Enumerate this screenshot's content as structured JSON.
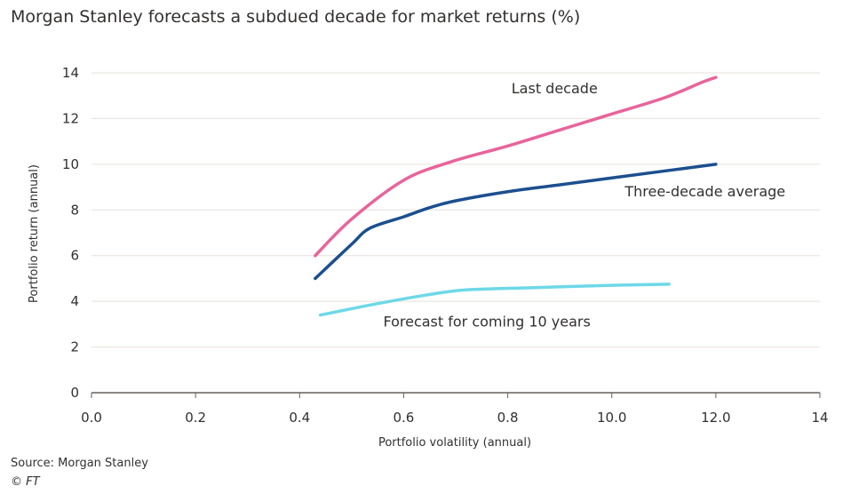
{
  "title": "Morgan Stanley forecasts a subdued decade for market returns (%)",
  "source": "Source: Morgan Stanley",
  "copyright": "© FT",
  "chart_data": {
    "type": "line",
    "title": "Morgan Stanley forecasts a subdued decade for market returns (%)",
    "xlabel": "Portfolio volatility (annual)",
    "ylabel": "Portfolio return (annual)",
    "x_ticks": [
      "0.0",
      "0.2",
      "0.4",
      "0.6",
      "0.8",
      "10.0",
      "12.0",
      "14"
    ],
    "y_ticks": [
      "0",
      "2",
      "4",
      "6",
      "8",
      "10",
      "12",
      "14"
    ],
    "xlim": [
      0,
      14
    ],
    "ylim": [
      0,
      14
    ],
    "grid": "horizontal",
    "series": [
      {
        "name": "Last decade",
        "color": "#e8649b",
        "points": [
          [
            4.3,
            6.0
          ],
          [
            5.0,
            7.6
          ],
          [
            6.0,
            9.3
          ],
          [
            6.9,
            10.1
          ],
          [
            8.0,
            10.8
          ],
          [
            9.0,
            11.5
          ],
          [
            10.0,
            12.2
          ],
          [
            11.0,
            12.9
          ],
          [
            11.75,
            13.6
          ],
          [
            12.0,
            13.8
          ]
        ]
      },
      {
        "name": "Three-decade average",
        "color": "#1c4f8f",
        "points": [
          [
            4.3,
            5.0
          ],
          [
            5.0,
            6.5
          ],
          [
            5.35,
            7.2
          ],
          [
            6.0,
            7.7
          ],
          [
            6.5,
            8.1
          ],
          [
            7.0,
            8.4
          ],
          [
            8.0,
            8.8
          ],
          [
            9.0,
            9.1
          ],
          [
            10.0,
            9.4
          ],
          [
            11.0,
            9.7
          ],
          [
            12.0,
            10.0
          ]
        ]
      },
      {
        "name": "Forecast for coming 10 years",
        "color": "#6dd8e8",
        "points": [
          [
            4.4,
            3.4
          ],
          [
            5.5,
            3.9
          ],
          [
            6.5,
            4.3
          ],
          [
            7.2,
            4.5
          ],
          [
            8.5,
            4.6
          ],
          [
            10.0,
            4.7
          ],
          [
            11.1,
            4.75
          ]
        ]
      }
    ],
    "annotations": [
      {
        "text": "Last decade",
        "x": 8.9,
        "y": 13.1,
        "anchor": "middle"
      },
      {
        "text": "Three-decade average",
        "x": 10.25,
        "y": 8.6,
        "anchor": "start"
      },
      {
        "text": "Forecast for coming 10 years",
        "x": 7.6,
        "y": 2.9,
        "anchor": "middle"
      }
    ]
  }
}
